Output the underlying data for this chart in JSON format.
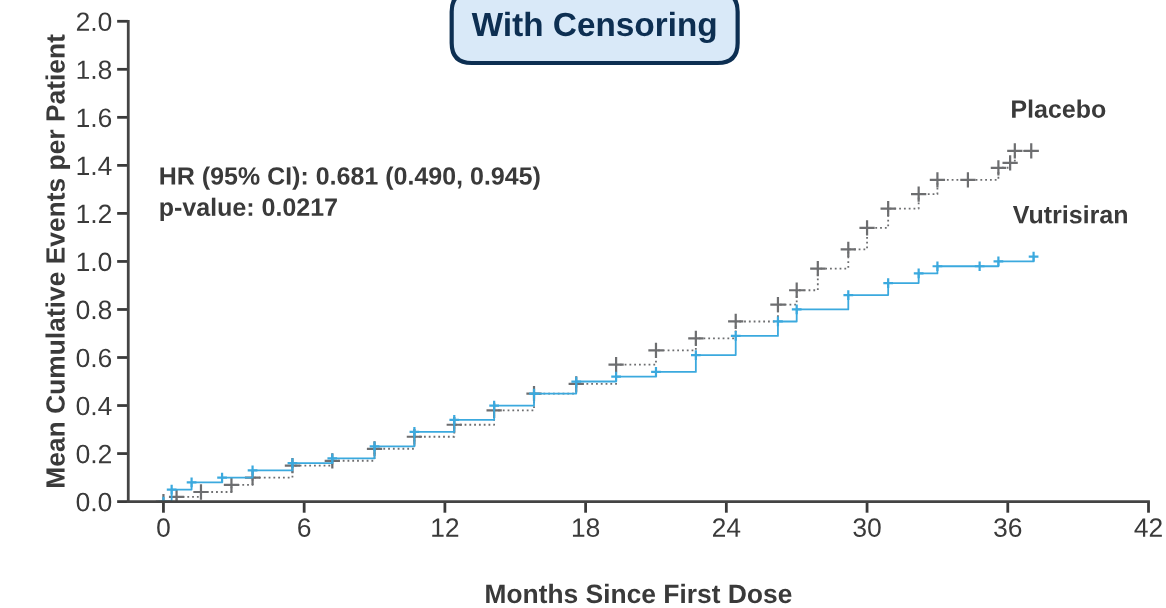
{
  "chart_data": {
    "type": "step",
    "title": "With Censoring",
    "xlabel": "Months Since First Dose",
    "ylabel": "Mean Cumulative Events per Patient",
    "xlim": [
      -1.5,
      42
    ],
    "xticks": [
      0,
      6,
      12,
      18,
      24,
      30,
      36,
      42
    ],
    "ylim": [
      0,
      2.0
    ],
    "yticks": [
      {
        "value": 0,
        "label": "0.0"
      },
      {
        "value": 0.2,
        "label": "0.2"
      },
      {
        "value": 0.4,
        "label": "0.4"
      },
      {
        "value": 0.6,
        "label": "0.6"
      },
      {
        "value": 0.8,
        "label": "0.8"
      },
      {
        "value": 1.0,
        "label": "1.0"
      },
      {
        "value": 1.2,
        "label": "1.2"
      },
      {
        "value": 1.4,
        "label": "1.4"
      },
      {
        "value": 1.6,
        "label": "1.6"
      },
      {
        "value": 1.8,
        "label": "1.8"
      },
      {
        "value": 2.0,
        "label": "2.0"
      }
    ],
    "grid": false,
    "legend": false,
    "marker": "cross",
    "series": [
      {
        "name": "Placebo",
        "color": "#6d6e70",
        "line_style": "dotted",
        "x": [
          0,
          0.56,
          1.6,
          2.9,
          3.8,
          5.5,
          7.2,
          9.0,
          10.7,
          12.4,
          14.1,
          15.8,
          17.6,
          19.3,
          21.0,
          22.7,
          24.4,
          26.2,
          27.0,
          27.9,
          29.2,
          30.0,
          30.9,
          32.2,
          33.0,
          34.3,
          35.6,
          36.1,
          36.3,
          37.0
        ],
        "values": [
          0,
          0.02,
          0.04,
          0.07,
          0.1,
          0.15,
          0.17,
          0.22,
          0.27,
          0.32,
          0.38,
          0.45,
          0.49,
          0.57,
          0.63,
          0.68,
          0.75,
          0.82,
          0.88,
          0.97,
          1.05,
          1.14,
          1.22,
          1.28,
          1.34,
          1.34,
          1.39,
          1.41,
          1.46,
          1.46
        ]
      },
      {
        "name": "Vutrisiran",
        "color": "#3ba9de",
        "line_style": "solid",
        "x": [
          0,
          0.35,
          1.2,
          2.5,
          3.8,
          5.5,
          7.2,
          9.0,
          10.7,
          12.4,
          14.1,
          15.8,
          17.6,
          19.3,
          21.0,
          22.7,
          24.4,
          26.2,
          27.0,
          29.2,
          30.9,
          32.2,
          33.0,
          34.8,
          35.6,
          37.1
        ],
        "values": [
          0,
          0.05,
          0.08,
          0.1,
          0.13,
          0.16,
          0.18,
          0.23,
          0.29,
          0.34,
          0.4,
          0.45,
          0.5,
          0.52,
          0.54,
          0.61,
          0.69,
          0.75,
          0.8,
          0.86,
          0.91,
          0.95,
          0.98,
          0.98,
          1.0,
          1.02
        ]
      }
    ],
    "annotations": [
      "HR (95% CI): 0.681 (0.490, 0.945)",
      "p-value: 0.0217"
    ]
  }
}
